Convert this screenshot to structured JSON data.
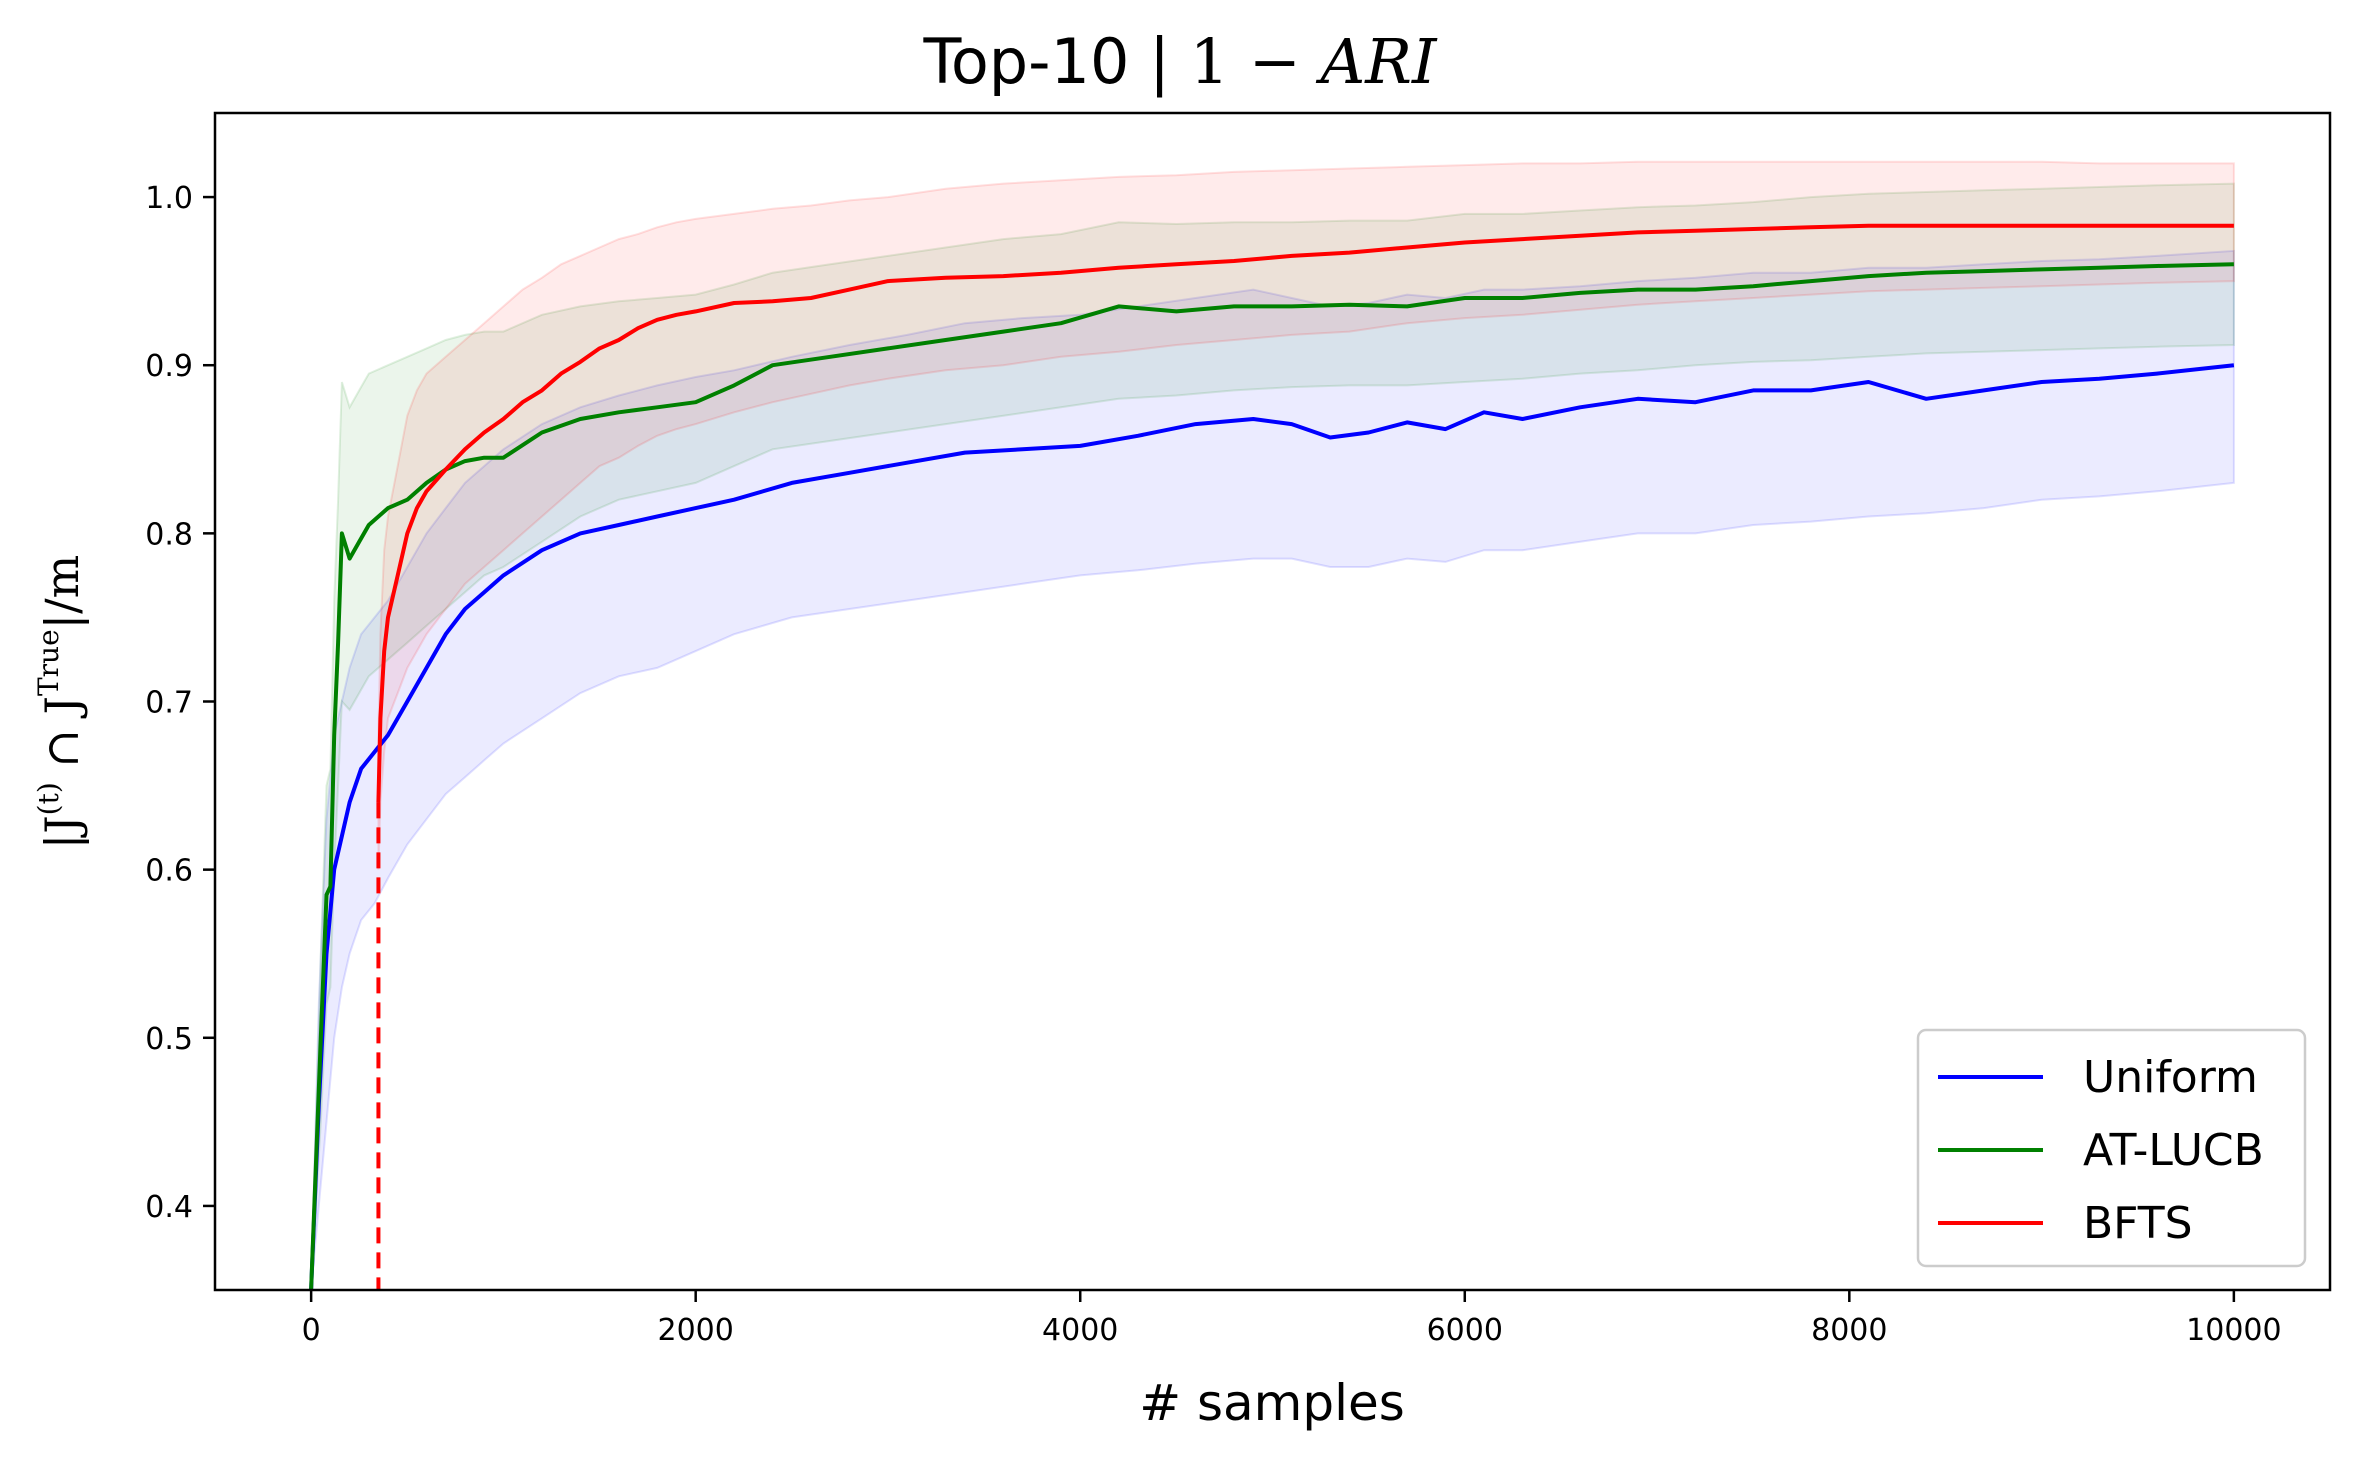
{
  "chart_data": {
    "type": "line",
    "title": "Top-10 | 1 − ARI",
    "title_parts": {
      "text": "Top-10 | ",
      "math_a": "1 − ",
      "math_b": "ARI"
    },
    "xlabel": "# samples",
    "ylabel": "|J(t) ∩ J True|/m",
    "ylabel_parts": {
      "a": "|J",
      "b": "(t)",
      "c": " ∩ J",
      "d": "True",
      "e": "|/m"
    },
    "xlim": [
      -500,
      10500
    ],
    "ylim": [
      0.35,
      1.05
    ],
    "xticks": [
      0,
      2000,
      4000,
      6000,
      8000,
      10000
    ],
    "yticks": [
      0.4,
      0.5,
      0.6,
      0.7,
      0.8,
      0.9,
      1.0
    ],
    "xtick_labels": [
      "0",
      "2000",
      "4000",
      "6000",
      "8000",
      "10000"
    ],
    "ytick_labels": [
      "0.4",
      "0.5",
      "0.6",
      "0.7",
      "0.8",
      "0.9",
      "1.0"
    ],
    "grid": false,
    "legend_position": "bottom-right",
    "vline": {
      "x": 350,
      "color": "#ff0000",
      "style": "dashed"
    },
    "series": [
      {
        "name": "Uniform",
        "color": "#0000ff",
        "x": [
          0,
          40,
          80,
          120,
          160,
          200,
          260,
          330,
          400,
          500,
          600,
          700,
          800,
          900,
          1000,
          1200,
          1400,
          1600,
          1800,
          2000,
          2200,
          2500,
          2800,
          3100,
          3400,
          3700,
          4000,
          4300,
          4600,
          4900,
          5100,
          5300,
          5500,
          5700,
          5900,
          6100,
          6300,
          6600,
          6900,
          7200,
          7500,
          7800,
          8100,
          8400,
          8700,
          9000,
          9300,
          9600,
          10000
        ],
        "values": [
          0.35,
          0.46,
          0.55,
          0.6,
          0.62,
          0.64,
          0.66,
          0.67,
          0.68,
          0.7,
          0.72,
          0.74,
          0.755,
          0.765,
          0.775,
          0.79,
          0.8,
          0.805,
          0.81,
          0.815,
          0.82,
          0.83,
          0.836,
          0.842,
          0.848,
          0.85,
          0.852,
          0.858,
          0.865,
          0.868,
          0.865,
          0.857,
          0.86,
          0.866,
          0.862,
          0.872,
          0.868,
          0.875,
          0.88,
          0.878,
          0.885,
          0.885,
          0.89,
          0.88,
          0.885,
          0.89,
          0.892,
          0.895,
          0.9
        ],
        "lower": [
          0.35,
          0.4,
          0.45,
          0.5,
          0.53,
          0.55,
          0.57,
          0.58,
          0.595,
          0.615,
          0.63,
          0.645,
          0.655,
          0.665,
          0.675,
          0.69,
          0.705,
          0.715,
          0.72,
          0.73,
          0.74,
          0.75,
          0.755,
          0.76,
          0.765,
          0.77,
          0.775,
          0.778,
          0.782,
          0.785,
          0.785,
          0.78,
          0.78,
          0.785,
          0.783,
          0.79,
          0.79,
          0.795,
          0.8,
          0.8,
          0.805,
          0.807,
          0.81,
          0.812,
          0.815,
          0.82,
          0.822,
          0.825,
          0.83
        ],
        "upper": [
          0.35,
          0.52,
          0.63,
          0.68,
          0.7,
          0.72,
          0.74,
          0.75,
          0.76,
          0.78,
          0.8,
          0.815,
          0.83,
          0.84,
          0.85,
          0.865,
          0.875,
          0.882,
          0.888,
          0.893,
          0.897,
          0.905,
          0.912,
          0.918,
          0.925,
          0.928,
          0.93,
          0.935,
          0.94,
          0.945,
          0.94,
          0.935,
          0.937,
          0.942,
          0.94,
          0.945,
          0.945,
          0.947,
          0.95,
          0.952,
          0.955,
          0.955,
          0.958,
          0.958,
          0.96,
          0.962,
          0.963,
          0.965,
          0.968
        ]
      },
      {
        "name": "AT-LUCB",
        "color": "#008000",
        "x": [
          0,
          50,
          80,
          100,
          120,
          140,
          160,
          200,
          250,
          300,
          400,
          500,
          600,
          700,
          800,
          900,
          1000,
          1200,
          1400,
          1600,
          1800,
          2000,
          2200,
          2400,
          2700,
          3000,
          3300,
          3600,
          3900,
          4200,
          4500,
          4800,
          5100,
          5400,
          5700,
          6000,
          6300,
          6600,
          6900,
          7200,
          7500,
          7800,
          8100,
          8400,
          8700,
          9000,
          9300,
          9600,
          10000
        ],
        "values": [
          0.35,
          0.5,
          0.585,
          0.59,
          0.68,
          0.735,
          0.8,
          0.785,
          0.795,
          0.805,
          0.815,
          0.82,
          0.83,
          0.838,
          0.843,
          0.845,
          0.845,
          0.86,
          0.868,
          0.872,
          0.875,
          0.878,
          0.888,
          0.9,
          0.905,
          0.91,
          0.915,
          0.92,
          0.925,
          0.935,
          0.932,
          0.935,
          0.935,
          0.936,
          0.935,
          0.94,
          0.94,
          0.943,
          0.945,
          0.945,
          0.947,
          0.95,
          0.953,
          0.955,
          0.956,
          0.957,
          0.958,
          0.959,
          0.96
        ],
        "lower": [
          0.35,
          0.45,
          0.52,
          0.53,
          0.6,
          0.65,
          0.7,
          0.695,
          0.705,
          0.715,
          0.725,
          0.735,
          0.745,
          0.755,
          0.765,
          0.775,
          0.78,
          0.795,
          0.81,
          0.82,
          0.825,
          0.83,
          0.84,
          0.85,
          0.855,
          0.86,
          0.865,
          0.87,
          0.875,
          0.88,
          0.882,
          0.885,
          0.887,
          0.888,
          0.888,
          0.89,
          0.892,
          0.895,
          0.897,
          0.9,
          0.902,
          0.903,
          0.905,
          0.907,
          0.908,
          0.909,
          0.91,
          0.911,
          0.912
        ],
        "upper": [
          0.35,
          0.55,
          0.65,
          0.66,
          0.76,
          0.82,
          0.89,
          0.875,
          0.885,
          0.895,
          0.9,
          0.905,
          0.91,
          0.915,
          0.918,
          0.92,
          0.92,
          0.93,
          0.935,
          0.938,
          0.94,
          0.942,
          0.948,
          0.955,
          0.96,
          0.965,
          0.97,
          0.975,
          0.978,
          0.985,
          0.984,
          0.985,
          0.985,
          0.986,
          0.986,
          0.99,
          0.99,
          0.992,
          0.994,
          0.995,
          0.997,
          1.0,
          1.002,
          1.003,
          1.004,
          1.005,
          1.006,
          1.007,
          1.008
        ]
      },
      {
        "name": "BFTS",
        "color": "#ff0000",
        "x": [
          350,
          360,
          380,
          400,
          450,
          500,
          550,
          600,
          700,
          800,
          900,
          1000,
          1100,
          1200,
          1300,
          1400,
          1500,
          1600,
          1700,
          1800,
          1900,
          2000,
          2200,
          2400,
          2600,
          2800,
          3000,
          3300,
          3600,
          3900,
          4200,
          4500,
          4800,
          5100,
          5400,
          5700,
          6000,
          6300,
          6600,
          6900,
          7200,
          7500,
          7800,
          8100,
          8400,
          8700,
          9000,
          9300,
          9600,
          10000
        ],
        "values": [
          0.64,
          0.69,
          0.73,
          0.75,
          0.775,
          0.8,
          0.815,
          0.825,
          0.838,
          0.85,
          0.86,
          0.868,
          0.878,
          0.885,
          0.895,
          0.902,
          0.91,
          0.915,
          0.922,
          0.927,
          0.93,
          0.932,
          0.937,
          0.938,
          0.94,
          0.945,
          0.95,
          0.952,
          0.953,
          0.955,
          0.958,
          0.96,
          0.962,
          0.965,
          0.967,
          0.97,
          0.973,
          0.975,
          0.977,
          0.979,
          0.98,
          0.981,
          0.982,
          0.983,
          0.983,
          0.983,
          0.983,
          0.983,
          0.983,
          0.983
        ],
        "lower": [
          0.6,
          0.64,
          0.67,
          0.69,
          0.705,
          0.72,
          0.73,
          0.74,
          0.755,
          0.77,
          0.78,
          0.79,
          0.8,
          0.81,
          0.82,
          0.83,
          0.84,
          0.845,
          0.852,
          0.858,
          0.862,
          0.865,
          0.872,
          0.878,
          0.883,
          0.888,
          0.892,
          0.897,
          0.9,
          0.905,
          0.908,
          0.912,
          0.915,
          0.918,
          0.92,
          0.925,
          0.928,
          0.93,
          0.933,
          0.936,
          0.938,
          0.94,
          0.942,
          0.944,
          0.945,
          0.946,
          0.947,
          0.948,
          0.949,
          0.95
        ],
        "upper": [
          0.68,
          0.74,
          0.79,
          0.81,
          0.84,
          0.87,
          0.885,
          0.895,
          0.905,
          0.915,
          0.925,
          0.935,
          0.945,
          0.952,
          0.96,
          0.965,
          0.97,
          0.975,
          0.978,
          0.982,
          0.985,
          0.987,
          0.99,
          0.993,
          0.995,
          0.998,
          1.0,
          1.005,
          1.008,
          1.01,
          1.012,
          1.013,
          1.015,
          1.016,
          1.017,
          1.018,
          1.019,
          1.02,
          1.02,
          1.021,
          1.021,
          1.021,
          1.021,
          1.021,
          1.021,
          1.021,
          1.021,
          1.02,
          1.02,
          1.02
        ]
      }
    ]
  }
}
